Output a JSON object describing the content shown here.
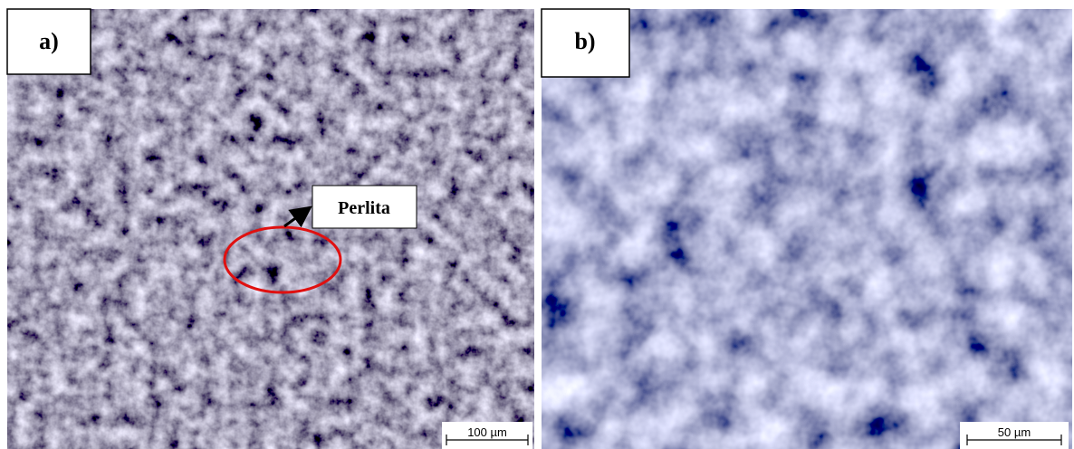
{
  "panels": [
    {
      "label": "a)",
      "scale_bar": "100 µm",
      "annotation": "Perlita"
    },
    {
      "label": "b)",
      "scale_bar": "50 µm"
    }
  ]
}
